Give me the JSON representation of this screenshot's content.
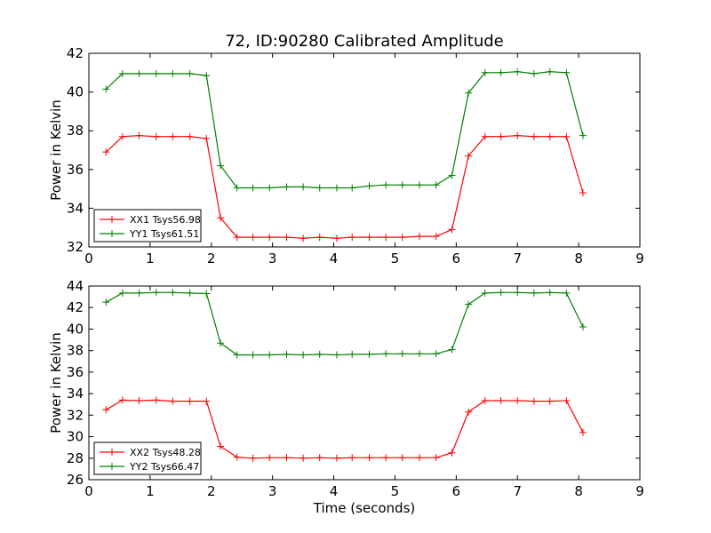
{
  "chart_data": [
    {
      "type": "line",
      "title": "72, ID:90280 Calibrated Amplitude",
      "xlabel": "",
      "ylabel": "Power in Kelvin",
      "xlim": [
        0,
        9
      ],
      "ylim": [
        32,
        42
      ],
      "xticks": [
        0,
        1,
        2,
        3,
        4,
        5,
        6,
        7,
        8,
        9
      ],
      "yticks": [
        32,
        34,
        36,
        38,
        40,
        42
      ],
      "legend_position": "lower-left",
      "grid": false,
      "x": [
        0.28,
        0.55,
        0.82,
        1.1,
        1.37,
        1.65,
        1.92,
        2.15,
        2.42,
        2.68,
        2.95,
        3.23,
        3.5,
        3.77,
        4.05,
        4.3,
        4.58,
        4.85,
        5.12,
        5.4,
        5.67,
        5.93,
        6.2,
        6.47,
        6.73,
        7.0,
        7.27,
        7.53,
        7.8,
        8.07
      ],
      "series": [
        {
          "name": "XX1 Tsys56.98",
          "color": "#ff0000",
          "values": [
            36.9,
            37.7,
            37.75,
            37.7,
            37.7,
            37.7,
            37.6,
            33.5,
            32.5,
            32.5,
            32.5,
            32.5,
            32.45,
            32.5,
            32.45,
            32.5,
            32.5,
            32.5,
            32.5,
            32.55,
            32.55,
            32.9,
            36.7,
            37.7,
            37.7,
            37.75,
            37.7,
            37.7,
            37.7,
            34.8
          ]
        },
        {
          "name": "YY1 Tsys61.51",
          "color": "#008000",
          "values": [
            40.15,
            40.95,
            40.95,
            40.95,
            40.95,
            40.95,
            40.85,
            36.2,
            35.05,
            35.05,
            35.05,
            35.1,
            35.1,
            35.05,
            35.05,
            35.05,
            35.15,
            35.2,
            35.2,
            35.2,
            35.2,
            35.7,
            39.95,
            41.0,
            41.0,
            41.05,
            40.95,
            41.05,
            41.0,
            37.75
          ]
        }
      ]
    },
    {
      "type": "line",
      "title": "",
      "xlabel": "Time (seconds)",
      "ylabel": "Power in Kelvin",
      "xlim": [
        0,
        9
      ],
      "ylim": [
        26,
        44
      ],
      "xticks": [
        0,
        1,
        2,
        3,
        4,
        5,
        6,
        7,
        8,
        9
      ],
      "yticks": [
        26,
        28,
        30,
        32,
        34,
        36,
        38,
        40,
        42,
        44
      ],
      "legend_position": "lower-left",
      "grid": false,
      "x": [
        0.28,
        0.55,
        0.82,
        1.1,
        1.37,
        1.65,
        1.92,
        2.15,
        2.42,
        2.68,
        2.95,
        3.23,
        3.5,
        3.77,
        4.05,
        4.3,
        4.58,
        4.85,
        5.12,
        5.4,
        5.67,
        5.93,
        6.2,
        6.47,
        6.73,
        7.0,
        7.27,
        7.53,
        7.8,
        8.07
      ],
      "series": [
        {
          "name": "XX2 Tsys48.28",
          "color": "#ff0000",
          "values": [
            32.5,
            33.4,
            33.35,
            33.4,
            33.3,
            33.3,
            33.3,
            29.1,
            28.1,
            28.0,
            28.05,
            28.05,
            28.0,
            28.05,
            28.0,
            28.05,
            28.05,
            28.05,
            28.05,
            28.05,
            28.05,
            28.5,
            32.3,
            33.35,
            33.35,
            33.35,
            33.3,
            33.3,
            33.35,
            30.4
          ]
        },
        {
          "name": "YY2 Tsys66.47",
          "color": "#008000",
          "values": [
            42.5,
            43.35,
            43.35,
            43.4,
            43.4,
            43.35,
            43.3,
            38.7,
            37.6,
            37.6,
            37.6,
            37.65,
            37.6,
            37.65,
            37.6,
            37.65,
            37.65,
            37.7,
            37.7,
            37.7,
            37.7,
            38.1,
            42.3,
            43.35,
            43.4,
            43.4,
            43.35,
            43.4,
            43.35,
            40.2
          ]
        }
      ]
    }
  ]
}
